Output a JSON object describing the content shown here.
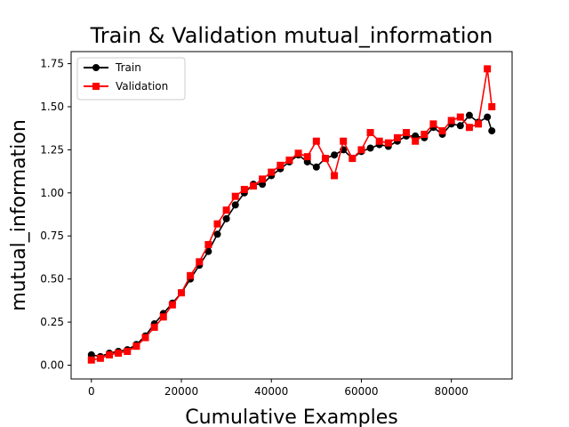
{
  "chart_data": {
    "type": "line",
    "title": "Train & Validation mutual_information",
    "xlabel": "Cumulative Examples",
    "ylabel": "mutual_information",
    "xlim": [
      -4500,
      93500
    ],
    "ylim": [
      -0.08,
      1.82
    ],
    "xticks": [
      0,
      20000,
      40000,
      60000,
      80000
    ],
    "xtick_labels": [
      "0",
      "20000",
      "40000",
      "60000",
      "80000"
    ],
    "yticks": [
      0.0,
      0.25,
      0.5,
      0.75,
      1.0,
      1.25,
      1.5,
      1.75
    ],
    "ytick_labels": [
      "0.00",
      "0.25",
      "0.50",
      "0.75",
      "1.00",
      "1.25",
      "1.50",
      "1.75"
    ],
    "grid": false,
    "legend": "top-left",
    "series": [
      {
        "name": "Train",
        "color": "#000000",
        "marker": "circle",
        "x": [
          0,
          2000,
          4000,
          6000,
          8000,
          10000,
          12000,
          14000,
          16000,
          18000,
          20000,
          22000,
          24000,
          26000,
          28000,
          30000,
          32000,
          34000,
          36000,
          38000,
          40000,
          42000,
          44000,
          46000,
          48000,
          50000,
          52000,
          54000,
          56000,
          58000,
          60000,
          62000,
          64000,
          66000,
          68000,
          70000,
          72000,
          74000,
          76000,
          78000,
          80000,
          82000,
          84000,
          86000,
          88000,
          89000
        ],
        "y": [
          0.06,
          0.05,
          0.07,
          0.08,
          0.09,
          0.12,
          0.17,
          0.24,
          0.3,
          0.36,
          0.42,
          0.5,
          0.58,
          0.66,
          0.76,
          0.85,
          0.93,
          1.0,
          1.05,
          1.05,
          1.1,
          1.14,
          1.18,
          1.22,
          1.18,
          1.15,
          1.2,
          1.22,
          1.25,
          1.2,
          1.24,
          1.26,
          1.28,
          1.27,
          1.3,
          1.33,
          1.33,
          1.32,
          1.38,
          1.34,
          1.4,
          1.39,
          1.45,
          1.41,
          1.44,
          1.36
        ]
      },
      {
        "name": "Validation",
        "color": "#ff0000",
        "marker": "square",
        "x": [
          0,
          2000,
          4000,
          6000,
          8000,
          10000,
          12000,
          14000,
          16000,
          18000,
          20000,
          22000,
          24000,
          26000,
          28000,
          30000,
          32000,
          34000,
          36000,
          38000,
          40000,
          42000,
          44000,
          46000,
          48000,
          50000,
          52000,
          54000,
          56000,
          58000,
          60000,
          62000,
          64000,
          66000,
          68000,
          70000,
          72000,
          74000,
          76000,
          78000,
          80000,
          82000,
          84000,
          86000,
          88000,
          89000
        ],
        "y": [
          0.03,
          0.04,
          0.06,
          0.07,
          0.08,
          0.11,
          0.16,
          0.22,
          0.28,
          0.35,
          0.42,
          0.52,
          0.6,
          0.7,
          0.82,
          0.9,
          0.98,
          1.02,
          1.04,
          1.08,
          1.12,
          1.16,
          1.19,
          1.23,
          1.21,
          1.3,
          1.2,
          1.1,
          1.3,
          1.2,
          1.25,
          1.35,
          1.3,
          1.29,
          1.32,
          1.35,
          1.3,
          1.34,
          1.4,
          1.36,
          1.42,
          1.44,
          1.38,
          1.4,
          1.72,
          1.5
        ]
      }
    ]
  }
}
